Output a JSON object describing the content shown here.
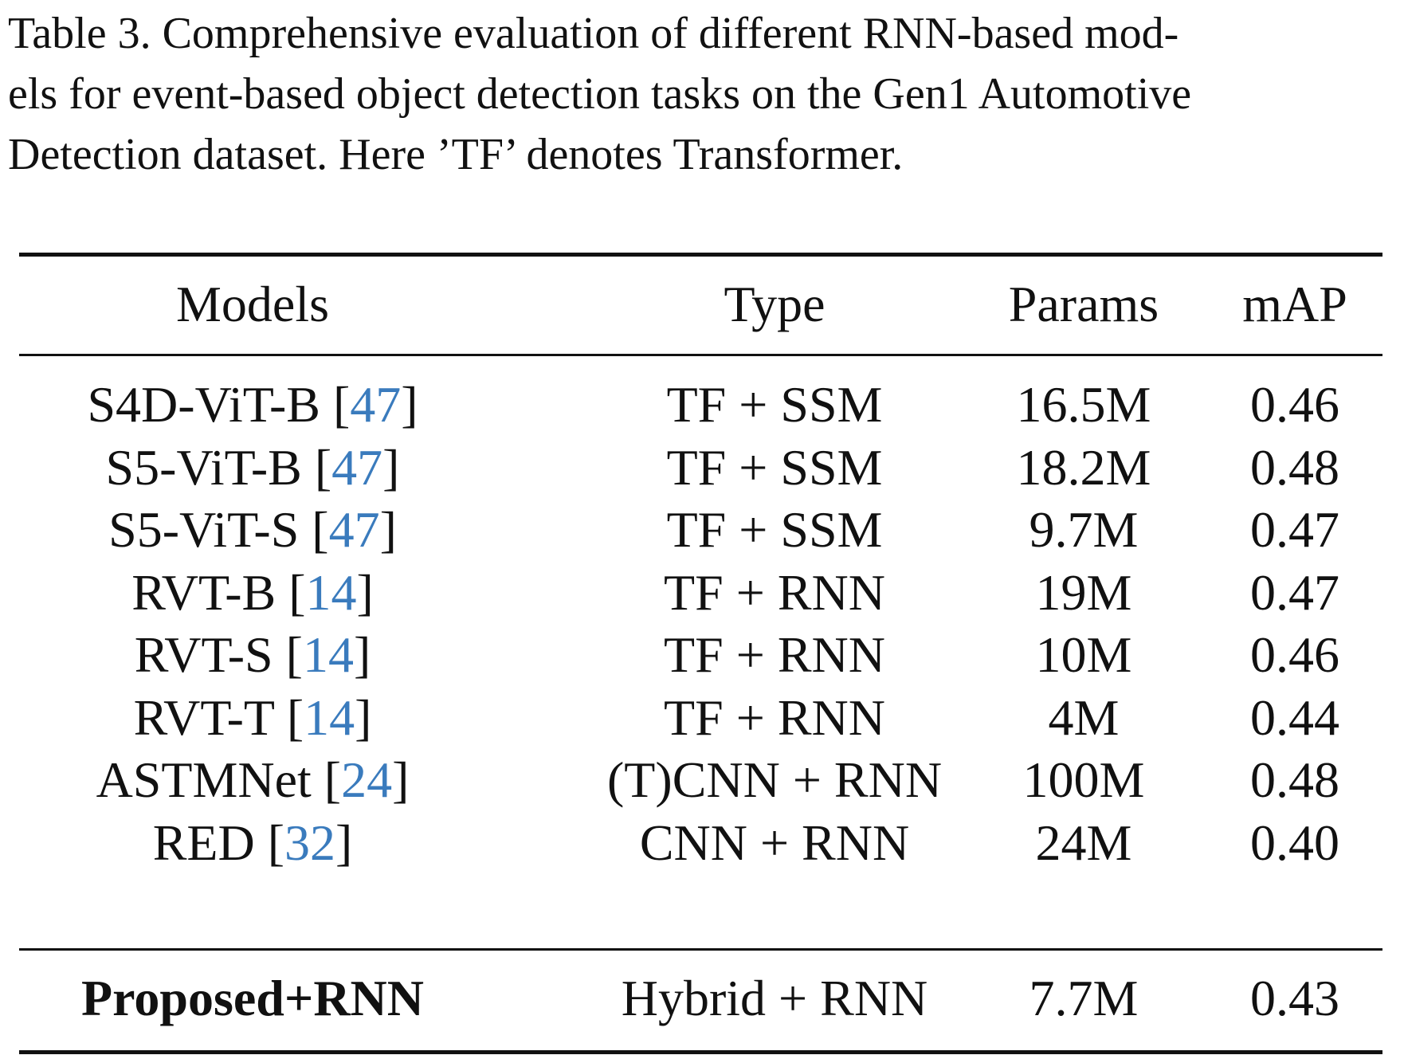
{
  "caption": {
    "lines": [
      "Table 3. Comprehensive evaluation of different RNN-based mod-",
      "els for event-based object detection tasks on the Gen1 Automotive",
      "Detection dataset. Here ’TF’ denotes Transformer."
    ]
  },
  "table": {
    "headers": {
      "models": "Models",
      "type": "Type",
      "params": "Params",
      "map": "mAP"
    },
    "rows": [
      {
        "model": "S4D-ViT-B",
        "cite": "47",
        "type": "TF + SSM",
        "params": "16.5M",
        "map": "0.46"
      },
      {
        "model": "S5-ViT-B",
        "cite": "47",
        "type": "TF + SSM",
        "params": "18.2M",
        "map": "0.48"
      },
      {
        "model": "S5-ViT-S",
        "cite": "47",
        "type": "TF + SSM",
        "params": "9.7M",
        "map": "0.47"
      },
      {
        "model": "RVT-B",
        "cite": "14",
        "type": "TF + RNN",
        "params": "19M",
        "map": "0.47"
      },
      {
        "model": "RVT-S",
        "cite": "14",
        "type": "TF + RNN",
        "params": "10M",
        "map": "0.46"
      },
      {
        "model": "RVT-T",
        "cite": "14",
        "type": "TF + RNN",
        "params": "4M",
        "map": "0.44"
      },
      {
        "model": "ASTMNet",
        "cite": "24",
        "type": "(T)CNN + RNN",
        "params": "100M",
        "map": "0.48"
      },
      {
        "model": "RED",
        "cite": "32",
        "type": "CNN + RNN",
        "params": "24M",
        "map": "0.40"
      }
    ],
    "proposed": {
      "model": "Proposed+RNN",
      "type": "Hybrid + RNN",
      "params": "7.7M",
      "map": "0.43"
    }
  },
  "colors": {
    "citation": "#3a7bbd",
    "text": "#111111"
  }
}
